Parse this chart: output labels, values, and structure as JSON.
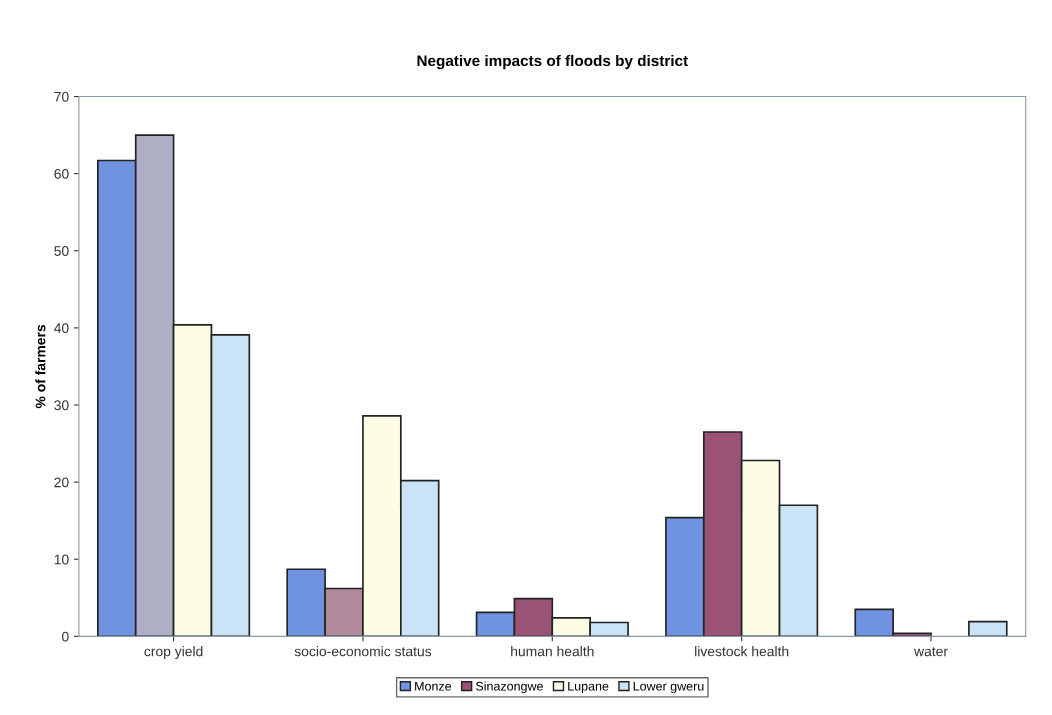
{
  "chart_data": {
    "type": "bar",
    "title": "Negative impacts of floods by district",
    "ylabel": "% of farmers",
    "categories": [
      "crop yield",
      "socio-economic status",
      "human health",
      "livestock health",
      "water"
    ],
    "series": [
      {
        "name": "Monze",
        "color": "#6f93e0",
        "values": [
          61.7,
          8.7,
          3.1,
          15.4,
          3.5
        ]
      },
      {
        "name": "Sinazongwe",
        "color": "#9a5275",
        "colors": [
          "#aeaec4",
          "#b08a9c",
          "#9a5275",
          "#9a5275",
          "#9a5275"
        ],
        "values": [
          65.0,
          6.2,
          4.9,
          26.5,
          0.4
        ]
      },
      {
        "name": "Lupane",
        "color": "#fdfde6",
        "values": [
          40.4,
          28.6,
          2.4,
          22.8,
          null
        ]
      },
      {
        "name": "Lower gweru",
        "color": "#cbe3f7",
        "values": [
          39.1,
          20.2,
          1.8,
          17.0,
          1.9
        ]
      }
    ],
    "ylim": [
      0,
      70
    ],
    "yticks": [
      0,
      10,
      20,
      30,
      40,
      50,
      60,
      70
    ],
    "grid": false,
    "legend": "bottom"
  }
}
